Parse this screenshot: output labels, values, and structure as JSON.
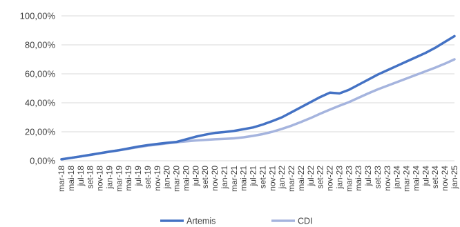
{
  "chart_data": {
    "type": "line",
    "title": "",
    "xlabel": "",
    "ylabel": "",
    "ylim": [
      0,
      100
    ],
    "y_ticks": [
      "0,00%",
      "20,00%",
      "40,00%",
      "60,00%",
      "80,00%",
      "100,00%"
    ],
    "y_tick_values": [
      0,
      20,
      40,
      60,
      80,
      100
    ],
    "grid": "horizontal",
    "legend_position": "bottom",
    "x_tick_labels": [
      "mar-18",
      "mai-18",
      "jul-18",
      "set-18",
      "nov-18",
      "jan-19",
      "mar-19",
      "mai-19",
      "jul-19",
      "set-19",
      "nov-19",
      "jan-20",
      "mar-20",
      "mai-20",
      "jul-20",
      "set-20",
      "nov-20",
      "jan-21",
      "mar-21",
      "mai-21",
      "jul-21",
      "set-21",
      "nov-21",
      "jan-22",
      "mar-22",
      "mai-22",
      "jul-22",
      "set-22",
      "nov-22",
      "jan-23",
      "mar-23",
      "mai-23",
      "jul-23",
      "set-23",
      "nov-23",
      "jan-24",
      "mar-24",
      "mai-24",
      "jul-24",
      "set-24",
      "nov-24",
      "jan-25"
    ],
    "series": [
      {
        "name": "Artemis",
        "color": "#4472c4",
        "values": [
          1.0,
          2.0,
          3.0,
          4.1,
          5.2,
          6.3,
          7.3,
          8.5,
          9.8,
          10.8,
          11.6,
          12.4,
          13.0,
          14.8,
          16.6,
          18.0,
          19.2,
          19.8,
          20.6,
          21.8,
          23.0,
          25.0,
          27.4,
          30.0,
          33.5,
          37.0,
          40.5,
          44.0,
          47.0,
          46.5,
          49.0,
          52.5,
          56.0,
          59.5,
          62.5,
          65.5,
          68.5,
          71.5,
          74.5,
          78.0,
          82.0,
          86.0
        ]
      },
      {
        "name": "CDI",
        "color": "#a5b4de",
        "values": [
          1.0,
          2.0,
          3.0,
          4.0,
          5.1,
          6.2,
          7.2,
          8.3,
          9.4,
          10.4,
          11.2,
          12.0,
          12.8,
          13.4,
          14.0,
          14.4,
          14.8,
          15.1,
          15.5,
          16.2,
          17.2,
          18.4,
          20.0,
          22.0,
          24.2,
          26.8,
          29.5,
          32.5,
          35.3,
          38.0,
          40.5,
          43.5,
          46.5,
          49.3,
          51.8,
          54.3,
          56.8,
          59.3,
          61.8,
          64.3,
          67.0,
          70.0
        ]
      }
    ]
  }
}
